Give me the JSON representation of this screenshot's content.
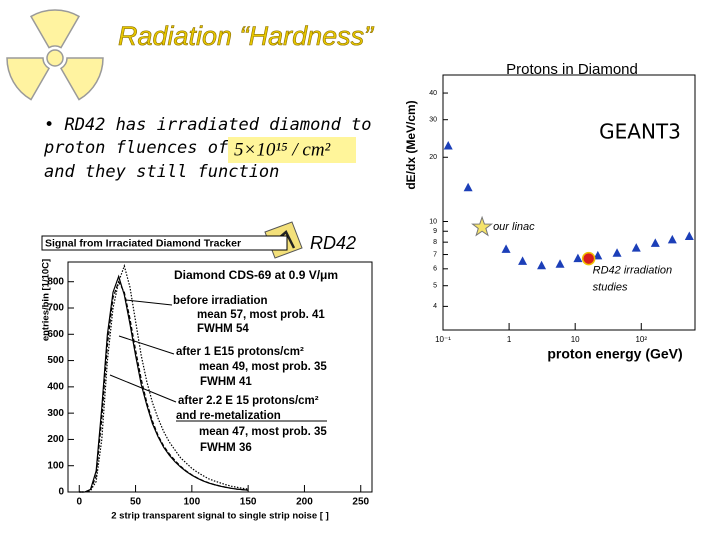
{
  "title": "Radiation “Hardness”",
  "bullet": {
    "lines": [
      "• RD42 has irradiated diamond to",
      "proton fluences of",
      "and they still function"
    ],
    "fluence": "5×10¹⁵ / cm²"
  },
  "logo_text": "RD42",
  "chart_data": [
    {
      "type": "line",
      "title": "Signal from Irraciated Diamond Tracker",
      "subtitle": "Diamond CDS-69 at 0.9 V/μm",
      "x_label": "2 strip transparent signal to single strip noise [ ]",
      "y_label": "entries/bin [1/10C]",
      "x": [
        0,
        5,
        10,
        15,
        20,
        25,
        30,
        35,
        40,
        45,
        50,
        55,
        60,
        65,
        70,
        75,
        80,
        85,
        90,
        95,
        100,
        105,
        110,
        115,
        120,
        125,
        130,
        135,
        140,
        145,
        150
      ],
      "series": [
        {
          "color": "#000000",
          "style": "dotted",
          "values": [
            0,
            0,
            5,
            40,
            200,
            500,
            700,
            800,
            860,
            780,
            650,
            520,
            420,
            340,
            280,
            230,
            190,
            160,
            130,
            110,
            90,
            75,
            62,
            50,
            42,
            35,
            28,
            22,
            18,
            14,
            11
          ]
        },
        {
          "color": "#000000",
          "style": "solid",
          "values": [
            0,
            0,
            10,
            80,
            320,
            600,
            760,
            820,
            750,
            640,
            520,
            410,
            330,
            260,
            210,
            170,
            140,
            115,
            95,
            78,
            64,
            52,
            42,
            34,
            28,
            22,
            18,
            14,
            11,
            9,
            7
          ]
        },
        {
          "color": "#000000",
          "style": "dashed",
          "values": [
            0,
            0,
            8,
            60,
            280,
            560,
            740,
            800,
            760,
            660,
            540,
            430,
            340,
            270,
            215,
            175,
            145,
            120,
            98,
            80,
            65,
            53,
            43,
            35,
            28,
            23,
            18,
            14,
            11,
            9,
            7
          ]
        }
      ],
      "xlim": [
        -10,
        260
      ],
      "ylim": [
        0,
        875
      ],
      "xticks": [
        0,
        50,
        100,
        150,
        200,
        250
      ],
      "yticks": [
        0,
        100,
        200,
        300,
        400,
        500,
        600,
        700,
        800
      ],
      "annotations": [
        "before irradiation",
        "mean  57, most prob. 41",
        "FWHM 54",
        "after 1 E15 protons/cm²",
        "mean 49, most prob. 35",
        "FWHM 41",
        "after 2.2 E 15 protons/cm²",
        "and re-metalization",
        "mean 47, most prob. 35",
        "FWHM 36"
      ]
    },
    {
      "type": "scatter",
      "title": "Protons in Diamond",
      "x_label": "proton energy (GeV)",
      "y_label": "dE/dx (MeV/cm)",
      "log_x": true,
      "log_y": true,
      "xlim": [
        0.1,
        650
      ],
      "ylim": [
        3.1,
        48.6
      ],
      "xticks": [
        {
          "value": 0.1,
          "label": "10⁻¹"
        },
        1,
        10,
        {
          "value": 100,
          "label": "10²"
        }
      ],
      "yticks": [
        4,
        5,
        6,
        7,
        8,
        9,
        10,
        20,
        30,
        40
      ],
      "points": {
        "color": "#1c3fb8",
        "marker": "triangle",
        "x": [
          0.12,
          0.24,
          0.9,
          1.6,
          3.1,
          5.9,
          11,
          22,
          43,
          84,
          163,
          295,
          533
        ],
        "y": [
          22.6,
          14.4,
          7.4,
          6.5,
          6.2,
          6.3,
          6.7,
          6.9,
          7.1,
          7.5,
          7.9,
          8.2,
          8.5
        ]
      },
      "linac": {
        "label": "our linac",
        "color": "#f5e36a",
        "marker": "star",
        "x": 0.39,
        "y": 9.4
      },
      "rd42": {
        "label": "RD42 irradiation studies",
        "color": "#d81e1e",
        "marker": "circle",
        "x": 16,
        "y": 6.7
      },
      "annotation": "GEANT3"
    }
  ]
}
